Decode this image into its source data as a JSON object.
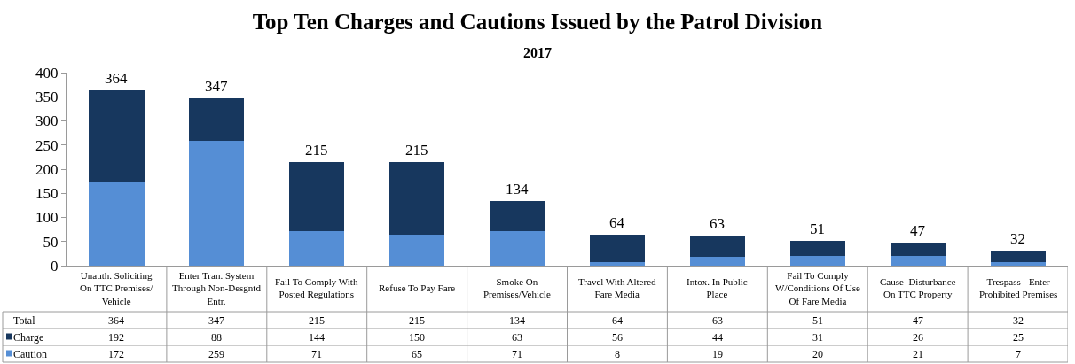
{
  "chart_data": {
    "type": "bar",
    "title": "Top Ten Charges and Cautions Issued by the Patrol Division",
    "subtitle": "2017",
    "categories": [
      "Unauth. Soliciting On TTC Premises/ Vehicle",
      "Enter Tran. System Through Non-Desgntd Entr.",
      "Fail To Comply With Posted Regulations",
      "Refuse To Pay Fare",
      "Smoke On Premises/Vehicle",
      "Travel With Altered Fare Media",
      "Intox. In Public Place",
      "Fail To Comply W/Conditions Of Use Of Fare Media",
      "Cause  Disturbance On TTC Property",
      "Trespass - Enter Prohibited Premises"
    ],
    "stacked": true,
    "series": [
      {
        "name": "Caution",
        "color": "#558ed5",
        "values": [
          172,
          259,
          71,
          65,
          71,
          8,
          19,
          20,
          21,
          7
        ]
      },
      {
        "name": "Charge",
        "color": "#17375e",
        "values": [
          192,
          88,
          144,
          150,
          63,
          56,
          44,
          31,
          26,
          25
        ]
      }
    ],
    "totals": [
      "364",
      "347",
      "215",
      "215",
      "134",
      "64",
      "63",
      "51",
      "47",
      "32"
    ],
    "annotations": [
      "Total"
    ],
    "data_labels": true,
    "ylim": [
      0,
      400
    ],
    "yticks": [
      0,
      50,
      100,
      150,
      200,
      250,
      300,
      350,
      400
    ],
    "grid": false,
    "legend": "bottom left"
  }
}
